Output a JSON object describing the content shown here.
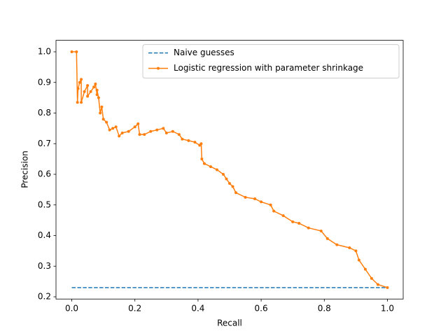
{
  "chart_data": {
    "type": "line",
    "xlabel": "Recall",
    "ylabel": "Precision",
    "xlim": [
      -0.05,
      1.05
    ],
    "ylim": [
      0.1927,
      1.0375
    ],
    "xticks": [
      {
        "value": 0,
        "label": "0.0"
      },
      0.2,
      0.4,
      0.6,
      0.8,
      {
        "value": 1,
        "label": "1.0"
      }
    ],
    "yticks": [
      0.2,
      0.3,
      0.4,
      0.5,
      0.6,
      0.7,
      0.8,
      0.9,
      {
        "value": 1,
        "label": "1.0"
      }
    ],
    "legend": "upper right",
    "series": [
      {
        "name": "Naive guesses",
        "color": "#1f77b4",
        "dashed": true,
        "markers": false,
        "x": [
          0,
          1
        ],
        "values": [
          0.23,
          0.23
        ]
      },
      {
        "name": "Logistic regression with parameter shrinkage",
        "color": "#ff7f0e",
        "dashed": false,
        "markers": true,
        "x": [
          0.0,
          0.015,
          0.018,
          0.02,
          0.025,
          0.03,
          0.03,
          0.04,
          0.05,
          0.05,
          0.06,
          0.07,
          0.075,
          0.08,
          0.08,
          0.085,
          0.09,
          0.095,
          0.1,
          0.11,
          0.12,
          0.13,
          0.14,
          0.15,
          0.16,
          0.18,
          0.2,
          0.21,
          0.215,
          0.23,
          0.25,
          0.27,
          0.29,
          0.3,
          0.32,
          0.34,
          0.35,
          0.37,
          0.39,
          0.405,
          0.41,
          0.412,
          0.42,
          0.44,
          0.46,
          0.48,
          0.49,
          0.5,
          0.51,
          0.52,
          0.55,
          0.58,
          0.6,
          0.63,
          0.64,
          0.67,
          0.7,
          0.72,
          0.75,
          0.79,
          0.81,
          0.84,
          0.88,
          0.9,
          0.91,
          0.93,
          0.95,
          0.97,
          1.0
        ],
        "values": [
          1.0,
          1.0,
          0.835,
          0.88,
          0.9,
          0.91,
          0.835,
          0.87,
          0.89,
          0.855,
          0.87,
          0.885,
          0.895,
          0.86,
          0.875,
          0.85,
          0.8,
          0.82,
          0.78,
          0.77,
          0.745,
          0.75,
          0.755,
          0.725,
          0.735,
          0.74,
          0.755,
          0.765,
          0.73,
          0.73,
          0.74,
          0.745,
          0.75,
          0.735,
          0.74,
          0.73,
          0.715,
          0.71,
          0.705,
          0.695,
          0.7,
          0.65,
          0.635,
          0.625,
          0.615,
          0.6,
          0.585,
          0.57,
          0.56,
          0.54,
          0.525,
          0.52,
          0.51,
          0.5,
          0.48,
          0.465,
          0.445,
          0.44,
          0.425,
          0.415,
          0.39,
          0.37,
          0.36,
          0.35,
          0.32,
          0.29,
          0.26,
          0.24,
          0.23
        ]
      }
    ]
  }
}
